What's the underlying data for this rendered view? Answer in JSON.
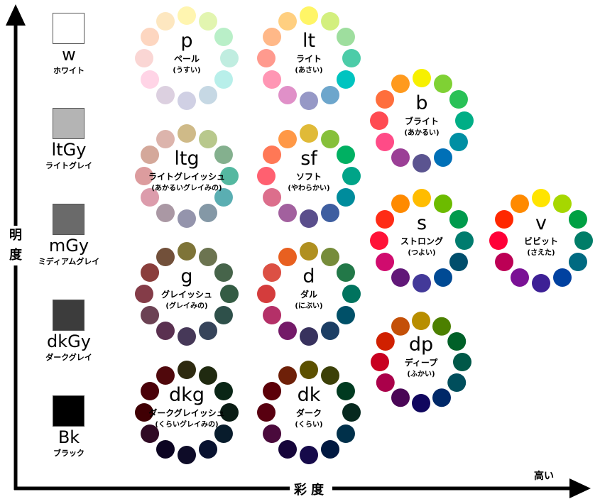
{
  "axes": {
    "vertical_label": "明度",
    "horizontal_label": "彩度",
    "horizontal_high": "高い"
  },
  "achromatic": [
    {
      "abbr": "w",
      "name": "ホワイト",
      "color": "#ffffff"
    },
    {
      "abbr": "ltGy",
      "name": "ライトグレイ",
      "color": "#b4b4b4"
    },
    {
      "abbr": "mGy",
      "name": "ミディアムグレイ",
      "color": "#6a6a6a"
    },
    {
      "abbr": "dkGy",
      "name": "ダークグレイ",
      "color": "#3c3c3c"
    },
    {
      "abbr": "Bk",
      "name": "ブラック",
      "color": "#000000"
    }
  ],
  "tones": [
    {
      "abbr": "p",
      "name": "ペール",
      "reading": "(うすい)",
      "colors": [
        "#fff5b0",
        "#e2f5b0",
        "#b9efc8",
        "#c0ede0",
        "#b8efea",
        "#c6d8e4",
        "#d0d0e4",
        "#dcd0e0",
        "#ffd4e6",
        "#fad6d4",
        "#fdd6c0",
        "#fde7c0"
      ]
    },
    {
      "abbr": "lt",
      "name": "ライト",
      "reading": "(あさい)",
      "colors": [
        "#fff566",
        "#d3ef7e",
        "#9ede9e",
        "#4ccca8",
        "#00c4c0",
        "#6da6cc",
        "#9698c6",
        "#e090c8",
        "#ff96b4",
        "#ff9a8e",
        "#ffb888",
        "#ffcf80"
      ]
    },
    {
      "abbr": "b",
      "name": "ブライト",
      "reading": "(あかるい)",
      "colors": [
        "#f7f000",
        "#7fd134",
        "#29c157",
        "#00ae86",
        "#008fa3",
        "#0070b7",
        "#5b5490",
        "#9b3f96",
        "#ff4b87",
        "#ff4b52",
        "#ff6e3c",
        "#ff9a1e"
      ]
    },
    {
      "abbr": "ltg",
      "name": "ライトグレイッシュ",
      "reading": "(あかるいグレイみの)",
      "colors": [
        "#cfba88",
        "#b8c88c",
        "#84b08e",
        "#54b8a0",
        "#5aaeb2",
        "#8498a6",
        "#9494ac",
        "#aa98a4",
        "#dc9cac",
        "#dc9c9e",
        "#d4a89a",
        "#dcb4ac"
      ]
    },
    {
      "abbr": "sf",
      "name": "ソフト",
      "reading": "(やわらかい)",
      "colors": [
        "#e0ba38",
        "#86c03a",
        "#00b062",
        "#00a488",
        "#008c9c",
        "#3e5ea0",
        "#5a4e8c",
        "#a2609e",
        "#dc6e8c",
        "#ff6070",
        "#ff7856",
        "#ff9846"
      ]
    },
    {
      "abbr": "s",
      "name": "ストロング",
      "reading": "(つよい)",
      "colors": [
        "#ffbc00",
        "#6cbb00",
        "#009a4d",
        "#007c6e",
        "#004e6c",
        "#004a94",
        "#433999",
        "#611878",
        "#d00b6e",
        "#ff1338",
        "#ff2c16",
        "#ff8a00"
      ]
    },
    {
      "abbr": "v",
      "name": "ビビット",
      "reading": "(さえた)",
      "colors": [
        "#ffe400",
        "#a6d700",
        "#00a043",
        "#007d68",
        "#006a81",
        "#0041a0",
        "#3d2095",
        "#7a1195",
        "#bc0055",
        "#ff0037",
        "#ff2800",
        "#ff8a00"
      ]
    },
    {
      "abbr": "g",
      "name": "グレイッシュ",
      "reading": "(グレイみの)",
      "colors": [
        "#7e7438",
        "#6c7450",
        "#46644a",
        "#345c44",
        "#2e504a",
        "#36445a",
        "#463858",
        "#5a3050",
        "#6c4254",
        "#843c48",
        "#8a3e3c",
        "#72503a"
      ]
    },
    {
      "abbr": "d",
      "name": "ダル",
      "reading": "(にぶい)",
      "colors": [
        "#b09020",
        "#768c3a",
        "#227848",
        "#00735e",
        "#005068",
        "#1c3e64",
        "#38325e",
        "#741a68",
        "#b43068",
        "#d43c3c",
        "#dc5044",
        "#e86020"
      ]
    },
    {
      "abbr": "dp",
      "name": "ディープ",
      "reading": "(ふかい)",
      "colors": [
        "#b88e00",
        "#4c8000",
        "#006028",
        "#005848",
        "#004e5c",
        "#002868",
        "#10065e",
        "#4a0656",
        "#aa004a",
        "#c80020",
        "#d02000",
        "#c45008"
      ]
    },
    {
      "abbr": "dkg",
      "name": "ダークグレイッシュ",
      "reading": "(くらいグレイみの)",
      "colors": [
        "#2e2a10",
        "#202a10",
        "#0a2616",
        "#0a1c14",
        "#081c2c",
        "#081230",
        "#0e0c28",
        "#0c0422",
        "#300a24",
        "#400004",
        "#4a0008",
        "#50080c"
      ]
    },
    {
      "abbr": "dk",
      "name": "ダーク",
      "reading": "(くらい)",
      "colors": [
        "#5c5000",
        "#3c4008",
        "#003a20",
        "#06281e",
        "#00304a",
        "#001840",
        "#160a4a",
        "#16053a",
        "#4a0a3c",
        "#580010",
        "#5c0008",
        "#6e2008"
      ]
    }
  ]
}
